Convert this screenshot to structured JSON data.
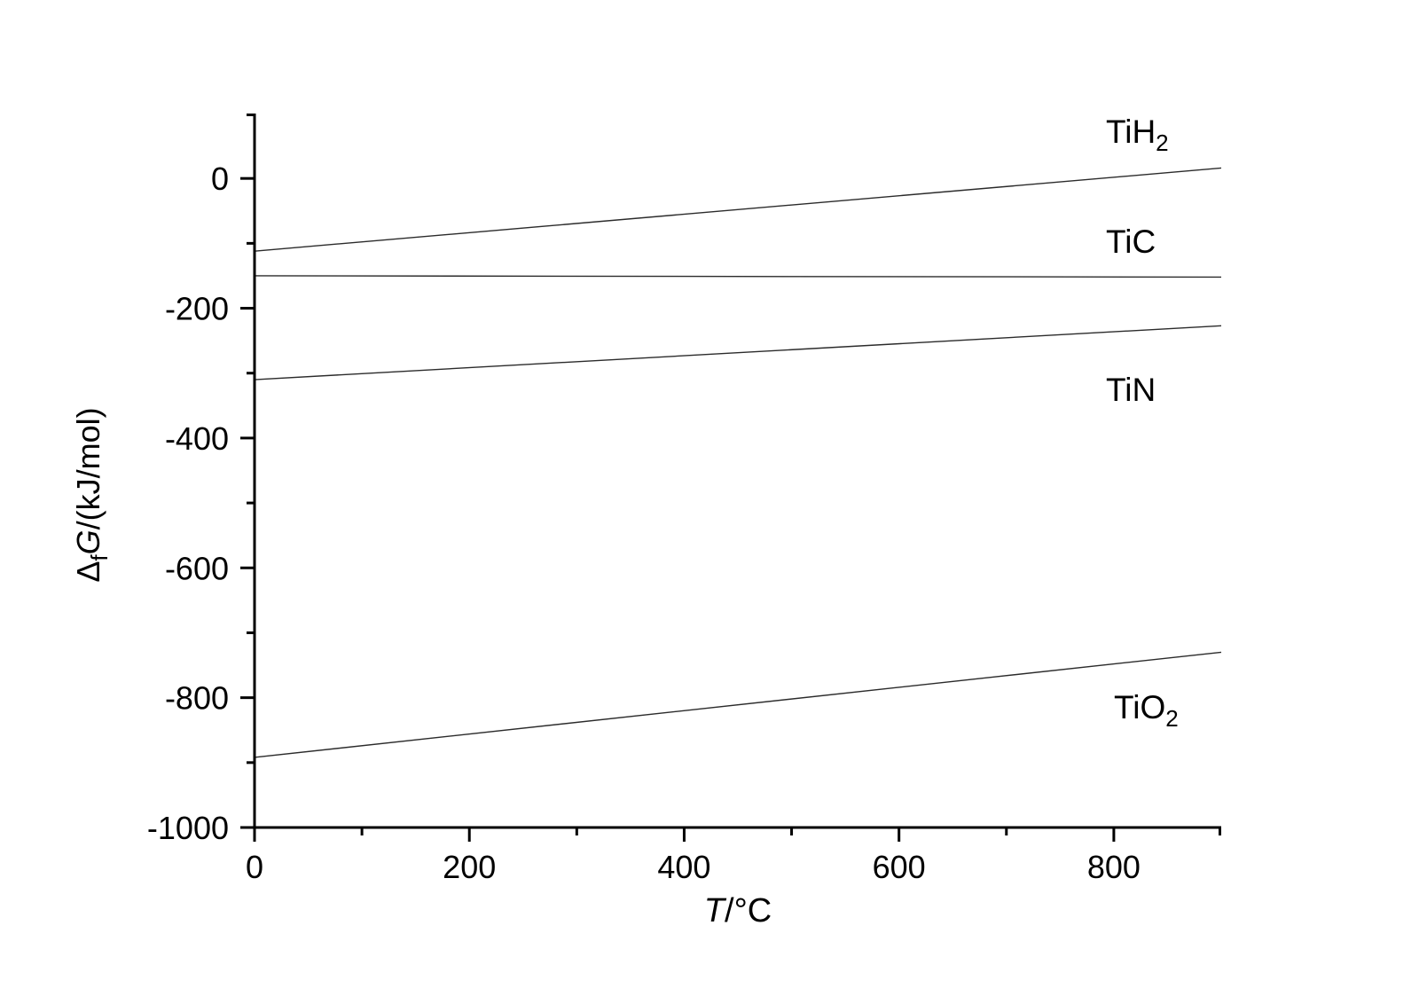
{
  "figure": {
    "background_color": "#ffffff",
    "axis_color": "#000000",
    "data_line_color": "#2b2b2b"
  },
  "chart_data": {
    "type": "line",
    "title": "",
    "xlabel_italic": "T",
    "xlabel_rest": "/°C",
    "ylabel_prefix": "Δ",
    "ylabel_sub": "f",
    "ylabel_italic": "G",
    "ylabel_rest": "/(kJ/mol)",
    "xlim": [
      0,
      900
    ],
    "ylim": [
      -1000,
      100
    ],
    "x_major_ticks": [
      0,
      200,
      400,
      600,
      800
    ],
    "x_minor_ticks": [
      100,
      300,
      500,
      700,
      900
    ],
    "y_major_ticks": [
      0,
      -200,
      -400,
      -600,
      -800,
      -1000
    ],
    "y_minor_ticks": [
      100,
      -100,
      -300,
      -500,
      -700,
      -900
    ],
    "grid": false,
    "legend_position": "inline-labels-right",
    "series": [
      {
        "name": "TiH2",
        "label_main": "TiH",
        "label_sub": "2",
        "x": [
          0,
          900
        ],
        "values": [
          -112,
          16
        ]
      },
      {
        "name": "TiC",
        "label_main": "TiC",
        "label_sub": "",
        "x": [
          0,
          900
        ],
        "values": [
          -150,
          -152
        ]
      },
      {
        "name": "TiN",
        "label_main": "TiN",
        "label_sub": "",
        "x": [
          0,
          900
        ],
        "values": [
          -310,
          -227
        ]
      },
      {
        "name": "TiO2",
        "label_main": "TiO",
        "label_sub": "2",
        "x": [
          0,
          900
        ],
        "values": [
          -892,
          -730
        ]
      }
    ]
  }
}
